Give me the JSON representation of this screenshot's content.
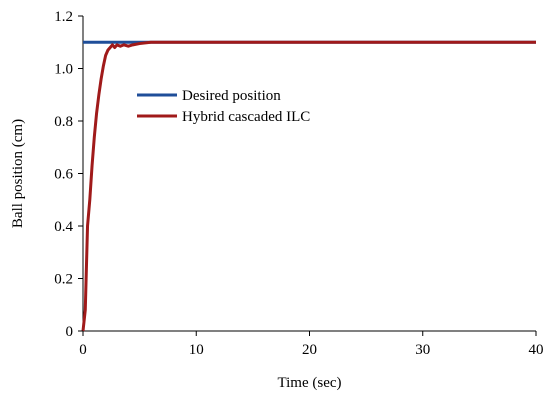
{
  "chart_data": {
    "type": "line",
    "title": "",
    "xlabel": "Time (sec)",
    "ylabel": "Ball position (cm)",
    "xlim": [
      0,
      40
    ],
    "ylim": [
      0,
      1.2
    ],
    "x_ticks": [
      "0",
      "10",
      "20",
      "30",
      "40"
    ],
    "y_ticks": [
      "0",
      "0.2",
      "0.4",
      "0.6",
      "0.8",
      "1.0",
      "1.2"
    ],
    "grid": false,
    "legend_position": "upper-left inside",
    "series": [
      {
        "name": "Desired position",
        "color": "#1f4e99",
        "x": [
          0,
          40
        ],
        "y": [
          1.1,
          1.1
        ]
      },
      {
        "name": "Hybrid cascaded ILC",
        "color": "#a01a1a",
        "x": [
          0,
          0.2,
          0.4,
          0.6,
          0.8,
          1.0,
          1.2,
          1.4,
          1.6,
          1.8,
          2.0,
          2.2,
          2.4,
          2.6,
          2.8,
          3.0,
          3.3,
          3.6,
          4.0,
          4.4,
          5.0,
          6.0,
          8.0,
          12.0,
          20.0,
          30.0,
          40.0
        ],
        "y": [
          0,
          0.08,
          0.4,
          0.5,
          0.63,
          0.74,
          0.83,
          0.9,
          0.96,
          1.01,
          1.05,
          1.07,
          1.08,
          1.09,
          1.08,
          1.09,
          1.085,
          1.09,
          1.085,
          1.09,
          1.095,
          1.1,
          1.1,
          1.1,
          1.1,
          1.1,
          1.1
        ]
      }
    ]
  }
}
